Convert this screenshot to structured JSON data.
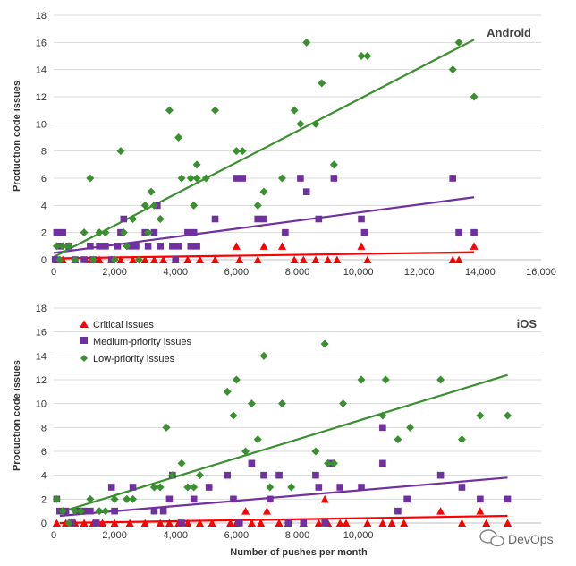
{
  "chart_data": [
    {
      "type": "scatter",
      "title": "Android",
      "xlabel": "",
      "ylabel": "Production code issues",
      "xlim": [
        0,
        16000
      ],
      "ylim": [
        0,
        18
      ],
      "x_ticks": [
        0,
        2000,
        4000,
        6000,
        8000,
        10000,
        12000,
        14000,
        16000
      ],
      "x_tick_labels": [
        "0",
        "2,000",
        "4,000",
        "6,000",
        "8,000",
        "10,000",
        "12,000",
        "14,000",
        "16,000"
      ],
      "y_ticks": [
        0,
        2,
        4,
        6,
        8,
        10,
        12,
        14,
        16,
        18
      ],
      "y_tick_labels": [
        "0",
        "2",
        "4",
        "6",
        "8",
        "10",
        "12",
        "14",
        "16",
        "18"
      ],
      "grid": "horizontal",
      "series": [
        {
          "key": "critical",
          "marker": "triangle",
          "color": "#ff0000",
          "points": [
            [
              100,
              0
            ],
            [
              300,
              0
            ],
            [
              700,
              0
            ],
            [
              1200,
              0
            ],
            [
              1500,
              0
            ],
            [
              1900,
              0
            ],
            [
              2200,
              0
            ],
            [
              2600,
              0
            ],
            [
              3000,
              0
            ],
            [
              3300,
              0
            ],
            [
              3600,
              0
            ],
            [
              4000,
              0
            ],
            [
              4400,
              0
            ],
            [
              4800,
              0
            ],
            [
              5300,
              0
            ],
            [
              6000,
              1
            ],
            [
              6100,
              0
            ],
            [
              6700,
              0
            ],
            [
              6900,
              1
            ],
            [
              7500,
              1
            ],
            [
              7900,
              0
            ],
            [
              8200,
              0
            ],
            [
              8600,
              0
            ],
            [
              9000,
              0
            ],
            [
              9300,
              0
            ],
            [
              10100,
              1
            ],
            [
              10300,
              0
            ],
            [
              13100,
              0
            ],
            [
              13300,
              0
            ],
            [
              13800,
              1
            ]
          ],
          "trend": [
            [
              0,
              0.1
            ],
            [
              13800,
              0.55
            ]
          ]
        },
        {
          "key": "medium",
          "marker": "square",
          "color": "#7030a0",
          "points": [
            [
              50,
              0
            ],
            [
              100,
              2
            ],
            [
              200,
              1
            ],
            [
              300,
              2
            ],
            [
              500,
              1
            ],
            [
              700,
              0
            ],
            [
              1000,
              0
            ],
            [
              1200,
              1
            ],
            [
              1300,
              0
            ],
            [
              1500,
              1
            ],
            [
              1700,
              1
            ],
            [
              1900,
              0
            ],
            [
              2100,
              1
            ],
            [
              2200,
              2
            ],
            [
              2300,
              3
            ],
            [
              2500,
              1
            ],
            [
              2700,
              1
            ],
            [
              3000,
              2
            ],
            [
              3100,
              1
            ],
            [
              3300,
              2
            ],
            [
              3400,
              4
            ],
            [
              3500,
              1
            ],
            [
              3900,
              1
            ],
            [
              4000,
              0
            ],
            [
              4100,
              1
            ],
            [
              4400,
              2
            ],
            [
              4500,
              1
            ],
            [
              4600,
              2
            ],
            [
              4700,
              1
            ],
            [
              5300,
              3
            ],
            [
              6000,
              6
            ],
            [
              6200,
              6
            ],
            [
              6700,
              3
            ],
            [
              6900,
              3
            ],
            [
              7600,
              2
            ],
            [
              8100,
              6
            ],
            [
              8300,
              5
            ],
            [
              8700,
              3
            ],
            [
              9200,
              6
            ],
            [
              10100,
              3
            ],
            [
              10200,
              2
            ],
            [
              13100,
              6
            ],
            [
              13300,
              2
            ],
            [
              13800,
              2
            ]
          ],
          "trend": [
            [
              0,
              0.5
            ],
            [
              13800,
              4.6
            ]
          ]
        },
        {
          "key": "low",
          "marker": "diamond",
          "color": "#3a8f2f",
          "points": [
            [
              100,
              1
            ],
            [
              200,
              0
            ],
            [
              300,
              1
            ],
            [
              500,
              1
            ],
            [
              700,
              0
            ],
            [
              1000,
              2
            ],
            [
              1200,
              6
            ],
            [
              1300,
              0
            ],
            [
              1500,
              2
            ],
            [
              1700,
              2
            ],
            [
              2000,
              0
            ],
            [
              2200,
              8
            ],
            [
              2300,
              2
            ],
            [
              2400,
              1
            ],
            [
              2600,
              3
            ],
            [
              2800,
              0
            ],
            [
              3000,
              4
            ],
            [
              3100,
              2
            ],
            [
              3200,
              5
            ],
            [
              3300,
              4
            ],
            [
              3500,
              3
            ],
            [
              3800,
              11
            ],
            [
              4100,
              9
            ],
            [
              4200,
              6
            ],
            [
              4500,
              6
            ],
            [
              4600,
              4
            ],
            [
              4700,
              6
            ],
            [
              4700,
              7
            ],
            [
              5000,
              6
            ],
            [
              5300,
              11
            ],
            [
              6000,
              8
            ],
            [
              6200,
              8
            ],
            [
              6700,
              4
            ],
            [
              6900,
              5
            ],
            [
              7500,
              6
            ],
            [
              7900,
              11
            ],
            [
              8100,
              10
            ],
            [
              8300,
              16
            ],
            [
              8600,
              10
            ],
            [
              8800,
              13
            ],
            [
              9200,
              7
            ],
            [
              10100,
              15
            ],
            [
              10300,
              15
            ],
            [
              13100,
              14
            ],
            [
              13300,
              16
            ],
            [
              13800,
              12
            ]
          ],
          "trend": [
            [
              0,
              0.2
            ],
            [
              13800,
              16.2
            ]
          ]
        }
      ]
    },
    {
      "type": "scatter",
      "title": "iOS",
      "xlabel": "Number of pushes per month",
      "ylabel": "Production code issues",
      "xlim": [
        0,
        16000
      ],
      "ylim": [
        0,
        18
      ],
      "x_ticks": [
        0,
        2000,
        4000,
        6000,
        8000,
        10000
      ],
      "x_tick_labels": [
        "0",
        "2,000",
        "4,000",
        "6,000",
        "8,000",
        "10,000"
      ],
      "y_ticks": [
        0,
        2,
        4,
        6,
        8,
        10,
        12,
        14,
        16,
        18
      ],
      "y_tick_labels": [
        "0",
        "2",
        "4",
        "6",
        "8",
        "10",
        "12",
        "14",
        "16",
        "18"
      ],
      "grid": "horizontal",
      "legend_position": "top-left",
      "series": [
        {
          "key": "critical",
          "name": "Critical issues",
          "marker": "triangle",
          "color": "#ff0000",
          "points": [
            [
              100,
              0
            ],
            [
              400,
              0
            ],
            [
              700,
              0
            ],
            [
              1000,
              0
            ],
            [
              1300,
              0
            ],
            [
              1600,
              0
            ],
            [
              2000,
              0
            ],
            [
              2500,
              0
            ],
            [
              3000,
              0
            ],
            [
              3500,
              0
            ],
            [
              3800,
              0
            ],
            [
              4100,
              0
            ],
            [
              4400,
              0
            ],
            [
              4800,
              0
            ],
            [
              5200,
              0
            ],
            [
              5800,
              0
            ],
            [
              6000,
              0
            ],
            [
              6300,
              1
            ],
            [
              6500,
              0
            ],
            [
              6800,
              0
            ],
            [
              7000,
              1
            ],
            [
              7400,
              0
            ],
            [
              7700,
              0
            ],
            [
              8200,
              0
            ],
            [
              8700,
              0
            ],
            [
              8900,
              2
            ],
            [
              9000,
              0
            ],
            [
              9400,
              0
            ],
            [
              9600,
              0
            ],
            [
              10300,
              0
            ],
            [
              10800,
              0
            ],
            [
              11100,
              0
            ],
            [
              11500,
              0
            ],
            [
              12700,
              1
            ],
            [
              13400,
              0
            ],
            [
              14000,
              1
            ],
            [
              14200,
              0
            ],
            [
              14900,
              0
            ]
          ],
          "trend": [
            [
              200,
              0.0
            ],
            [
              14900,
              0.6
            ]
          ]
        },
        {
          "key": "medium",
          "name": "Medium-priority issues",
          "marker": "square",
          "color": "#7030a0",
          "points": [
            [
              100,
              2
            ],
            [
              200,
              1
            ],
            [
              400,
              1
            ],
            [
              600,
              0
            ],
            [
              800,
              1
            ],
            [
              1000,
              1
            ],
            [
              1200,
              1
            ],
            [
              1400,
              0
            ],
            [
              1900,
              3
            ],
            [
              2000,
              1
            ],
            [
              2600,
              3
            ],
            [
              3300,
              1
            ],
            [
              3600,
              1
            ],
            [
              3800,
              2
            ],
            [
              3900,
              4
            ],
            [
              4200,
              0
            ],
            [
              4600,
              2
            ],
            [
              5100,
              3
            ],
            [
              5700,
              4
            ],
            [
              5900,
              2
            ],
            [
              6100,
              0
            ],
            [
              6500,
              5
            ],
            [
              6900,
              4
            ],
            [
              7100,
              2
            ],
            [
              7400,
              4
            ],
            [
              7700,
              0
            ],
            [
              8200,
              0
            ],
            [
              8600,
              4
            ],
            [
              8700,
              3
            ],
            [
              8900,
              0
            ],
            [
              9100,
              5
            ],
            [
              9400,
              3
            ],
            [
              10100,
              3
            ],
            [
              10800,
              8
            ],
            [
              10800,
              5
            ],
            [
              11300,
              1
            ],
            [
              11600,
              2
            ],
            [
              12700,
              4
            ],
            [
              13400,
              3
            ],
            [
              14000,
              2
            ],
            [
              14900,
              2
            ]
          ],
          "trend": [
            [
              200,
              0.6
            ],
            [
              14900,
              3.8
            ]
          ]
        },
        {
          "key": "low",
          "name": "Low-priority issues",
          "marker": "diamond",
          "color": "#3a8f2f",
          "points": [
            [
              100,
              2
            ],
            [
              300,
              1
            ],
            [
              500,
              0
            ],
            [
              700,
              1
            ],
            [
              900,
              1
            ],
            [
              1200,
              2
            ],
            [
              1500,
              1
            ],
            [
              1700,
              1
            ],
            [
              2000,
              2
            ],
            [
              2400,
              2
            ],
            [
              2600,
              2
            ],
            [
              3300,
              3
            ],
            [
              3500,
              3
            ],
            [
              3700,
              8
            ],
            [
              3900,
              4
            ],
            [
              4200,
              5
            ],
            [
              4400,
              3
            ],
            [
              4600,
              3
            ],
            [
              4800,
              4
            ],
            [
              5700,
              11
            ],
            [
              5900,
              9
            ],
            [
              6000,
              12
            ],
            [
              6300,
              6
            ],
            [
              6500,
              10
            ],
            [
              6700,
              7
            ],
            [
              6900,
              14
            ],
            [
              7100,
              3
            ],
            [
              7500,
              10
            ],
            [
              7800,
              3
            ],
            [
              8600,
              6
            ],
            [
              8900,
              15
            ],
            [
              9000,
              5
            ],
            [
              9200,
              5
            ],
            [
              9500,
              10
            ],
            [
              10100,
              12
            ],
            [
              10800,
              9
            ],
            [
              10900,
              12
            ],
            [
              11300,
              7
            ],
            [
              11700,
              8
            ],
            [
              12700,
              12
            ],
            [
              13400,
              7
            ],
            [
              14000,
              9
            ],
            [
              14900,
              9
            ]
          ],
          "trend": [
            [
              200,
              0.9
            ],
            [
              14900,
              12.4
            ]
          ]
        }
      ]
    }
  ],
  "watermark": {
    "text": "DevOps",
    "icon": "chat-bubble-icon"
  }
}
